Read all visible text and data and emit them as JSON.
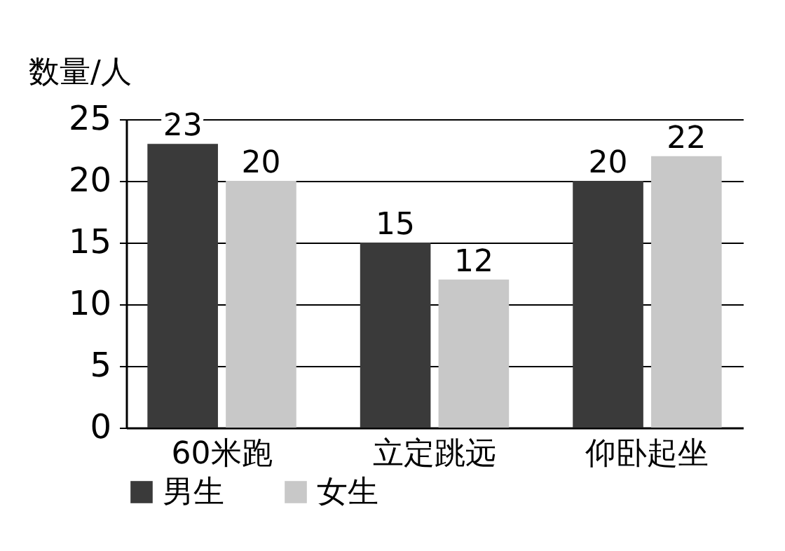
{
  "chart_data": {
    "type": "bar",
    "ylabel": "数量/人",
    "categories": [
      "60米跑",
      "立定跳远",
      "仰卧起坐"
    ],
    "series": [
      {
        "name": "男生",
        "color": "#3a3a3a",
        "values": [
          23,
          15,
          20
        ]
      },
      {
        "name": "女生",
        "color": "#c8c8c8",
        "values": [
          20,
          12,
          22
        ]
      }
    ],
    "ylim": [
      0,
      25
    ],
    "yticks": [
      0,
      5,
      10,
      15,
      20,
      25
    ],
    "grid": "y",
    "legend": "bottom",
    "data_labels": true
  }
}
